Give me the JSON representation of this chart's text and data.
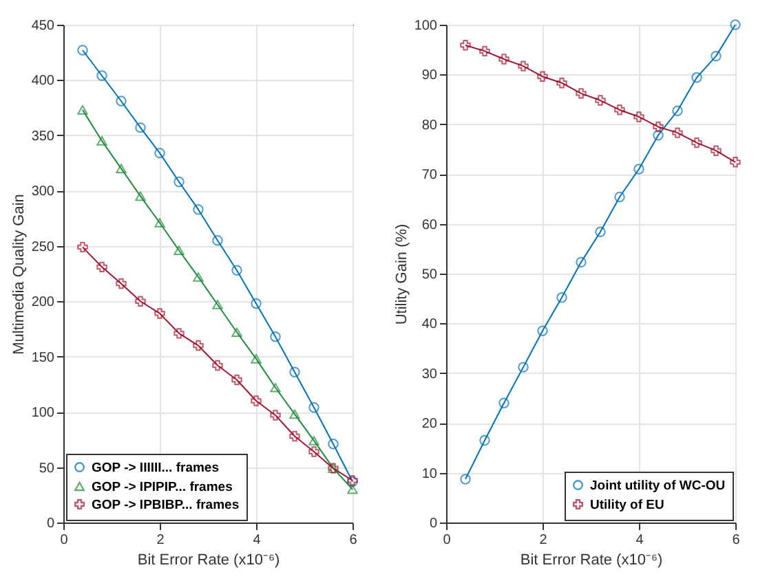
{
  "chart_data": [
    {
      "type": "line",
      "xlabel": "Bit Error Rate (x10⁻⁶)",
      "ylabel": "Multimedia Quality Gain",
      "x": [
        0.4,
        0.8,
        1.2,
        1.6,
        2.0,
        2.4,
        2.8,
        3.2,
        3.6,
        4.0,
        4.4,
        4.8,
        5.2,
        5.6,
        6.0
      ],
      "xlim": [
        0,
        6
      ],
      "xticks": [
        0,
        2,
        4,
        6
      ],
      "ylim": [
        0,
        450
      ],
      "yticks": [
        0,
        50,
        100,
        150,
        200,
        250,
        300,
        350,
        400,
        450
      ],
      "grid": true,
      "legend": "bottom left",
      "series": [
        {
          "name": "GOP -> IIIIII... frames",
          "color": "#0072bd",
          "marker": "circle",
          "values": [
            427,
            404,
            381,
            357,
            334,
            308,
            283,
            255,
            228,
            198,
            168,
            136,
            104,
            71,
            37
          ]
        },
        {
          "name": "GOP -> IPIPIP... frames",
          "color": "#1e8c3a",
          "marker": "triangle",
          "values": [
            373,
            345,
            320,
            295,
            271,
            246,
            222,
            197,
            172,
            148,
            122,
            98,
            74,
            49,
            30
          ]
        },
        {
          "name": "GOP -> IPBIBP... frames",
          "color": "#a2142f",
          "marker": "cross",
          "values": [
            249,
            231,
            216,
            200,
            189,
            171,
            160,
            142,
            129,
            110,
            97,
            78,
            64,
            49,
            38
          ]
        }
      ]
    },
    {
      "type": "line",
      "xlabel": "Bit Error Rate (x10⁻⁶)",
      "ylabel": "Utility Gain (%)",
      "x": [
        0.4,
        0.8,
        1.2,
        1.6,
        2.0,
        2.4,
        2.8,
        3.2,
        3.6,
        4.0,
        4.4,
        4.8,
        5.2,
        5.6,
        6.0
      ],
      "xlim": [
        0,
        6
      ],
      "xticks": [
        0,
        2,
        4,
        6
      ],
      "ylim": [
        0,
        100
      ],
      "yticks": [
        0,
        10,
        20,
        30,
        40,
        50,
        60,
        70,
        80,
        90,
        100
      ],
      "grid": true,
      "legend": "bottom right",
      "series": [
        {
          "name": "Joint utility of WC-OU",
          "color": "#0072bd",
          "marker": "circle",
          "values": [
            8.7,
            16.5,
            24,
            31.2,
            38.5,
            45.2,
            52.3,
            58.4,
            65.4,
            71,
            77.8,
            82.7,
            89.4,
            93.7,
            100
          ]
        },
        {
          "name": "Utility of EU",
          "color": "#a2142f",
          "marker": "cross",
          "values": [
            95.9,
            94.7,
            93.1,
            91.7,
            89.6,
            88.3,
            86.2,
            84.8,
            82.9,
            81.5,
            79.5,
            78.3,
            76.3,
            74.7,
            72.4
          ]
        }
      ]
    }
  ]
}
